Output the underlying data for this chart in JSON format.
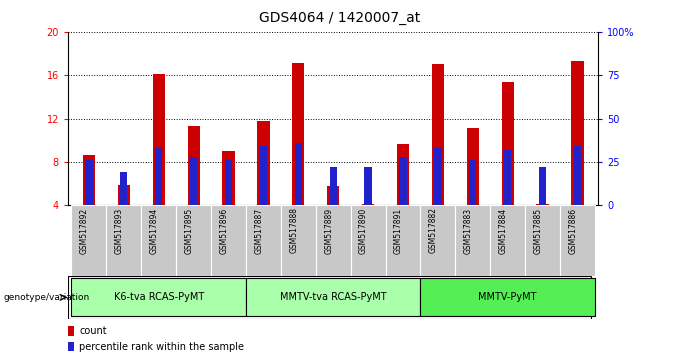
{
  "title": "GDS4064 / 1420007_at",
  "samples": [
    "GSM517892",
    "GSM517893",
    "GSM517894",
    "GSM517895",
    "GSM517896",
    "GSM517887",
    "GSM517888",
    "GSM517889",
    "GSM517890",
    "GSM517891",
    "GSM517882",
    "GSM517883",
    "GSM517884",
    "GSM517885",
    "GSM517886"
  ],
  "count_values": [
    8.6,
    5.9,
    16.1,
    11.3,
    9.0,
    11.8,
    17.1,
    5.8,
    4.1,
    9.7,
    17.0,
    11.1,
    15.4,
    4.1,
    17.3
  ],
  "percentile_values": [
    26.0,
    19.0,
    33.0,
    28.0,
    26.0,
    34.0,
    36.0,
    22.0,
    22.0,
    28.0,
    33.0,
    26.0,
    32.0,
    22.0,
    34.0
  ],
  "groups": [
    {
      "label": "K6-tva RCAS-PyMT",
      "start": 0,
      "end": 4,
      "color": "#aaffaa"
    },
    {
      "label": "MMTV-tva RCAS-PyMT",
      "start": 5,
      "end": 9,
      "color": "#aaffaa"
    },
    {
      "label": "MMTV-PyMT",
      "start": 10,
      "end": 14,
      "color": "#55ee55"
    }
  ],
  "bar_color_red": "#cc0000",
  "bar_color_blue": "#2222cc",
  "bar_width": 0.35,
  "ylim_left": [
    4,
    20
  ],
  "ylim_right": [
    0,
    100
  ],
  "yticks_left": [
    4,
    8,
    12,
    16,
    20
  ],
  "yticks_right": [
    0,
    25,
    50,
    75,
    100
  ],
  "ytick_labels_right": [
    "0",
    "25",
    "50",
    "75",
    "100%"
  ],
  "genotype_label": "genotype/variation",
  "legend_count": "count",
  "legend_percentile": "percentile rank within the sample",
  "cell_bg": "#c8c8c8",
  "white_bg": "#ffffff"
}
